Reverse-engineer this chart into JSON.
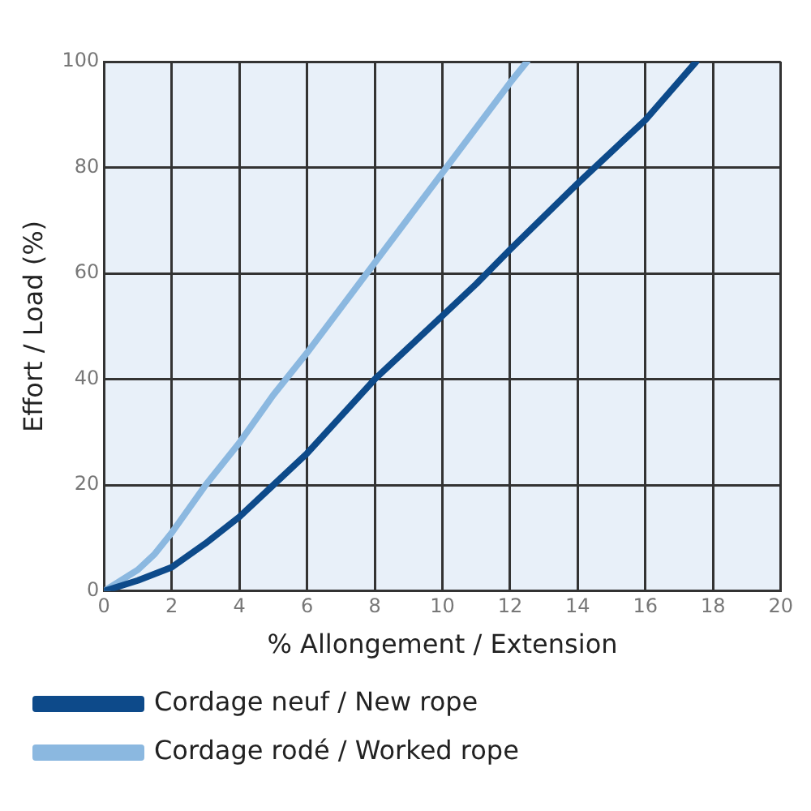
{
  "chart_data": {
    "type": "line",
    "xlabel": "% Allongement / Extension",
    "ylabel": "Effort / Load (%)",
    "xlim": [
      0,
      20
    ],
    "xticks": [
      0,
      2,
      4,
      6,
      8,
      10,
      12,
      14,
      16,
      18,
      20
    ],
    "ylim": [
      0,
      100
    ],
    "yticks": [
      0,
      20,
      40,
      60,
      80,
      100
    ],
    "grid": true,
    "legend": "bottom",
    "marker": "none",
    "line_style": "solid",
    "series": [
      {
        "name": "Cordage neuf / New rope",
        "color": "#0d4a8a",
        "x": [
          0,
          1,
          2,
          3,
          4,
          5,
          6,
          7,
          8,
          9,
          10,
          11,
          12,
          14,
          16,
          17.5
        ],
        "values": [
          0,
          2,
          4.5,
          9,
          14,
          20,
          26,
          33,
          40,
          46,
          52,
          58,
          64.5,
          77,
          89,
          100
        ]
      },
      {
        "name": "Cordage rodé / Worked rope",
        "color": "#8bb8e0",
        "x": [
          0,
          1,
          1.5,
          2,
          3,
          4,
          5,
          6,
          8,
          10,
          12,
          12.5
        ],
        "values": [
          0,
          4,
          7,
          11,
          20,
          28,
          37,
          45,
          62,
          79,
          96,
          100
        ]
      }
    ]
  }
}
